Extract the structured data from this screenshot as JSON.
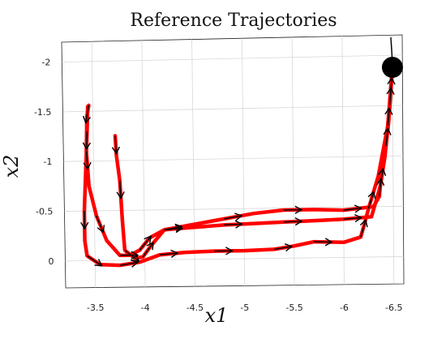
{
  "chart_data": {
    "type": "line",
    "title": "Reference Trajectories",
    "xlabel": "x1",
    "ylabel": "x2",
    "xlim": [
      -3.2,
      -6.6
    ],
    "ylim": [
      0.27,
      -2.2
    ],
    "grid": true,
    "x_ticks": [
      {
        "value": -3.5,
        "label": "-3.5"
      },
      {
        "value": -4.0,
        "label": "-4"
      },
      {
        "value": -4.5,
        "label": "-4.5"
      },
      {
        "value": -5.0,
        "label": "-5"
      },
      {
        "value": -5.5,
        "label": "-5.5"
      },
      {
        "value": -6.0,
        "label": "-6"
      },
      {
        "value": -6.5,
        "label": "-6.5"
      }
    ],
    "y_ticks": [
      {
        "value": -2.0,
        "label": "-2"
      },
      {
        "value": -1.5,
        "label": "-1.5"
      },
      {
        "value": -1.0,
        "label": "-1"
      },
      {
        "value": -0.5,
        "label": "-0.5"
      },
      {
        "value": 0.0,
        "label": "0"
      }
    ],
    "series_color": "#ff0000",
    "arrow_color": "#000000",
    "goal": {
      "x": -6.5,
      "y": -1.88
    },
    "series": [
      {
        "points": [
          [
            -6.5,
            -1.88
          ],
          [
            -6.48,
            -1.6
          ],
          [
            -6.46,
            -1.35
          ],
          [
            -6.43,
            -1.1
          ],
          [
            -6.38,
            -0.8
          ],
          [
            -6.36,
            -0.6
          ],
          [
            -6.3,
            -0.5
          ],
          [
            -6.0,
            -0.47
          ],
          [
            -5.7,
            -0.48
          ],
          [
            -5.4,
            -0.48
          ],
          [
            -5.1,
            -0.45
          ],
          [
            -4.8,
            -0.4
          ],
          [
            -4.5,
            -0.35
          ],
          [
            -4.2,
            -0.3
          ],
          [
            -4.05,
            -0.22
          ],
          [
            -3.95,
            -0.1
          ],
          [
            -3.85,
            -0.05
          ],
          [
            -3.75,
            -0.05
          ],
          [
            -3.62,
            -0.2
          ],
          [
            -3.52,
            -0.45
          ],
          [
            -3.45,
            -0.75
          ],
          [
            -3.43,
            -1.1
          ],
          [
            -3.44,
            -1.45
          ],
          [
            -3.46,
            -1.56
          ]
        ]
      },
      {
        "points": [
          [
            -6.5,
            -1.88
          ],
          [
            -6.47,
            -1.5
          ],
          [
            -6.42,
            -1.0
          ],
          [
            -6.37,
            -0.7
          ],
          [
            -6.28,
            -0.4
          ],
          [
            -6.0,
            -0.38
          ],
          [
            -5.7,
            -0.37
          ],
          [
            -5.4,
            -0.36
          ],
          [
            -5.1,
            -0.35
          ],
          [
            -4.8,
            -0.34
          ],
          [
            -4.5,
            -0.32
          ],
          [
            -4.2,
            -0.3
          ],
          [
            -4.07,
            -0.15
          ],
          [
            -3.98,
            -0.03
          ],
          [
            -3.9,
            -0.02
          ],
          [
            -3.8,
            -0.1
          ],
          [
            -3.78,
            -0.4
          ],
          [
            -3.76,
            -0.8
          ],
          [
            -3.73,
            -1.05
          ],
          [
            -3.72,
            -1.25
          ]
        ]
      },
      {
        "points": [
          [
            -6.5,
            -1.88
          ],
          [
            -6.45,
            -1.3
          ],
          [
            -6.35,
            -0.8
          ],
          [
            -6.25,
            -0.48
          ],
          [
            -6.2,
            -0.3
          ],
          [
            -6.17,
            -0.2
          ],
          [
            -6.0,
            -0.15
          ],
          [
            -5.7,
            -0.16
          ],
          [
            -5.5,
            -0.12
          ],
          [
            -5.3,
            -0.09
          ],
          [
            -5.0,
            -0.08
          ],
          [
            -4.7,
            -0.08
          ],
          [
            -4.4,
            -0.07
          ],
          [
            -4.15,
            -0.05
          ],
          [
            -3.95,
            0.02
          ],
          [
            -3.75,
            0.05
          ],
          [
            -3.55,
            0.04
          ],
          [
            -3.42,
            -0.05
          ],
          [
            -3.4,
            -0.2
          ],
          [
            -3.4,
            -0.5
          ],
          [
            -3.42,
            -0.9
          ],
          [
            -3.44,
            -1.3
          ],
          [
            -3.45,
            -1.55
          ]
        ]
      }
    ]
  }
}
